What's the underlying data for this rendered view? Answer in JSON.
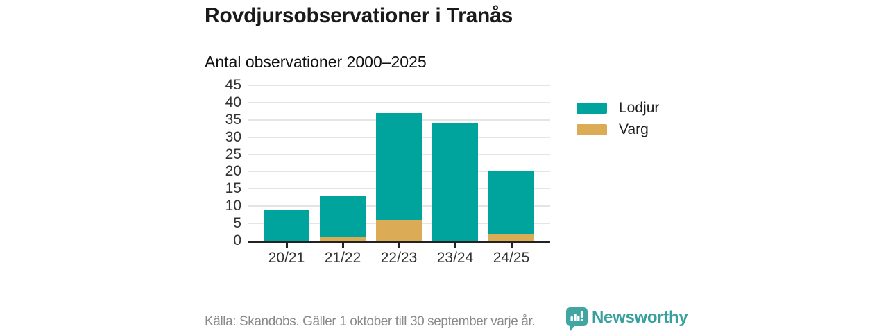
{
  "header": {
    "title": "Rovdjursobservationer i Tranås",
    "subtitle": "Antal observationer 2000–2025"
  },
  "chart_data": {
    "type": "bar",
    "stacked": true,
    "title": "Rovdjursobservationer i Tranås",
    "subtitle": "Antal observationer 2000–2025",
    "categories": [
      "20/21",
      "21/22",
      "22/23",
      "23/24",
      "24/25"
    ],
    "series": [
      {
        "name": "Varg",
        "color": "#dcab55",
        "values": [
          0,
          1,
          6,
          0,
          2
        ]
      },
      {
        "name": "Lodjur",
        "color": "#00a49c",
        "values": [
          9,
          12,
          31,
          34,
          18
        ]
      }
    ],
    "stack_order_bottom_to_top": [
      "Varg",
      "Lodjur"
    ],
    "totals": [
      9,
      13,
      37,
      34,
      20
    ],
    "xlabel": "",
    "ylabel": "",
    "ylim": [
      0,
      45
    ],
    "ytick_step": 5,
    "yticks": [
      0,
      5,
      10,
      15,
      20,
      25,
      30,
      35,
      40,
      45
    ],
    "grid": "horizontal",
    "legend_position": "right"
  },
  "legend": {
    "items": [
      {
        "label": "Lodjur",
        "color": "#00a49c"
      },
      {
        "label": "Varg",
        "color": "#dcab55"
      }
    ]
  },
  "colors": {
    "lodjur": "#00a49c",
    "varg": "#dcab55",
    "axis": "#222222",
    "gridline": "#e4e4e4",
    "text": "#1a1a1a",
    "muted_text": "#8a8a8a",
    "brand_teal": "#37a09c"
  },
  "footer": {
    "source": "Källa: Skandobs. Gäller 1 oktober till 30 september varje år.",
    "brand": "Newsworthy"
  }
}
